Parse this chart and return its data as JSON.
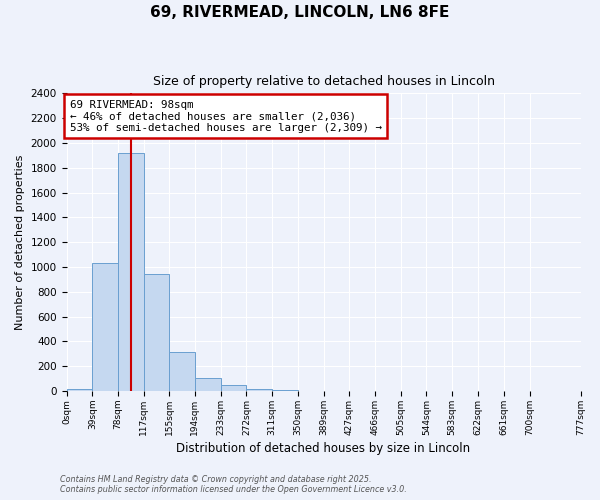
{
  "title": "69, RIVERMEAD, LINCOLN, LN6 8FE",
  "subtitle": "Size of property relative to detached houses in Lincoln",
  "xlabel": "Distribution of detached houses by size in Lincoln",
  "ylabel": "Number of detached properties",
  "bar_values": [
    20,
    1030,
    1920,
    940,
    315,
    105,
    45,
    20,
    10,
    0,
    0,
    0,
    0,
    0,
    0,
    0,
    0,
    0,
    0
  ],
  "bin_edges": [
    0,
    39,
    78,
    117,
    155,
    194,
    233,
    272,
    311,
    350,
    389,
    427,
    466,
    505,
    544,
    583,
    622,
    661,
    700,
    777
  ],
  "bin_labels": [
    "0sqm",
    "39sqm",
    "78sqm",
    "117sqm",
    "155sqm",
    "194sqm",
    "233sqm",
    "272sqm",
    "311sqm",
    "350sqm",
    "389sqm",
    "427sqm",
    "466sqm",
    "505sqm",
    "544sqm",
    "583sqm",
    "622sqm",
    "661sqm",
    "700sqm",
    "777sqm"
  ],
  "bar_color": "#c5d8f0",
  "bar_edge_color": "#6a9fd0",
  "property_size": 98,
  "vline_color": "#cc0000",
  "annotation_title": "69 RIVERMEAD: 98sqm",
  "annotation_line1": "← 46% of detached houses are smaller (2,036)",
  "annotation_line2": "53% of semi-detached houses are larger (2,309) →",
  "annotation_box_color": "#ffffff",
  "annotation_box_edge": "#cc0000",
  "ylim": [
    0,
    2400
  ],
  "yticks": [
    0,
    200,
    400,
    600,
    800,
    1000,
    1200,
    1400,
    1600,
    1800,
    2000,
    2200,
    2400
  ],
  "bg_color": "#eef2fb",
  "grid_color": "#ffffff",
  "footer1": "Contains HM Land Registry data © Crown copyright and database right 2025.",
  "footer2": "Contains public sector information licensed under the Open Government Licence v3.0."
}
